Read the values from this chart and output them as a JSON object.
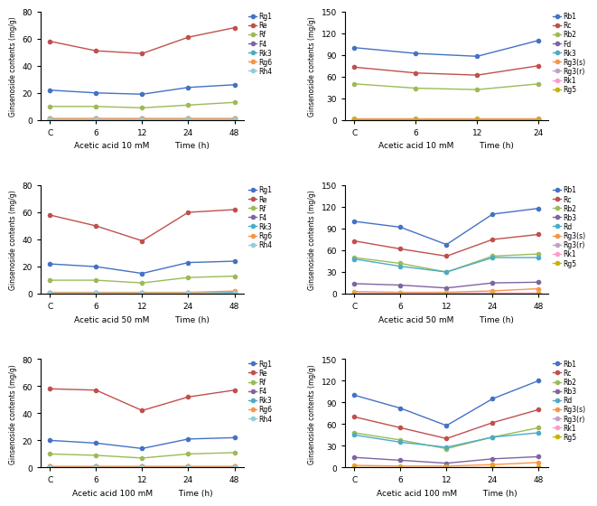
{
  "x_left": [
    "C",
    "6",
    "12",
    "24",
    "48"
  ],
  "left_panels": [
    {
      "title": "Acetic acid 10 mM",
      "ylim": [
        0,
        80
      ],
      "yticks": [
        0,
        20,
        40,
        60,
        80
      ],
      "series": {
        "Rg1": [
          22,
          20,
          19,
          24,
          26
        ],
        "Re": [
          58,
          51,
          49,
          61,
          68
        ],
        "Rf": [
          10,
          10,
          9,
          11,
          13
        ],
        "F4": [
          1,
          1,
          1,
          1,
          1
        ],
        "Rk3": [
          1,
          1,
          1,
          1,
          1
        ],
        "Rg6": [
          1,
          1,
          1,
          1,
          1
        ],
        "Rh4": [
          0.5,
          0.5,
          0.5,
          0.5,
          0.5
        ]
      }
    },
    {
      "title": "Acetic acid 50 mM",
      "ylim": [
        0,
        80
      ],
      "yticks": [
        0,
        20,
        40,
        60,
        80
      ],
      "series": {
        "Rg1": [
          22,
          20,
          15,
          23,
          24
        ],
        "Re": [
          58,
          50,
          39,
          60,
          62
        ],
        "Rf": [
          10,
          10,
          8,
          12,
          13
        ],
        "F4": [
          1,
          1,
          1,
          1,
          1
        ],
        "Rk3": [
          1,
          0.5,
          0.5,
          0.5,
          1
        ],
        "Rg6": [
          1,
          1,
          1,
          1,
          2
        ],
        "Rh4": [
          0.5,
          0.5,
          0.5,
          0.5,
          0.5
        ]
      }
    },
    {
      "title": "Acetic acid 100 mM",
      "ylim": [
        0,
        80
      ],
      "yticks": [
        0,
        20,
        40,
        60,
        80
      ],
      "series": {
        "Rg1": [
          20,
          18,
          14,
          21,
          22
        ],
        "Re": [
          58,
          57,
          42,
          52,
          57
        ],
        "Rf": [
          10,
          9,
          7,
          10,
          11
        ],
        "F4": [
          1,
          1,
          1,
          1,
          1
        ],
        "Rk3": [
          1,
          1,
          1,
          1,
          1
        ],
        "Rg6": [
          1,
          1,
          1,
          1,
          1
        ],
        "Rh4": [
          0.5,
          0.5,
          0.5,
          0.5,
          0.5
        ]
      }
    }
  ],
  "right_10mM": {
    "title": "Acetic acid 10 mM",
    "x": [
      "C",
      "6",
      "12",
      "24"
    ],
    "ylim": [
      0,
      150
    ],
    "yticks": [
      0,
      30,
      60,
      90,
      120,
      150
    ],
    "series": {
      "Rb1": [
        100,
        92,
        88,
        110
      ],
      "Rc": [
        73,
        65,
        62,
        75
      ],
      "Rb2": [
        50,
        44,
        42,
        50
      ],
      "Fd": [
        1,
        1,
        1,
        1
      ],
      "Rk3": [
        1,
        1,
        1,
        1
      ],
      "Rg3(s)": [
        2,
        2,
        2,
        2
      ],
      "Rg3(r)": [
        1,
        1,
        1,
        1
      ],
      "Rk1": [
        1,
        1,
        1,
        1
      ],
      "Rg5": [
        0.5,
        0.5,
        0.5,
        0.5
      ]
    }
  },
  "right_50mM": {
    "title": "Acetic acid 50 mM",
    "x": [
      "C",
      "6",
      "12",
      "24",
      "48"
    ],
    "ylim": [
      0,
      150
    ],
    "yticks": [
      0,
      30,
      60,
      90,
      120,
      150
    ],
    "series": {
      "Rb1": [
        100,
        92,
        68,
        110,
        118
      ],
      "Rc": [
        73,
        62,
        52,
        75,
        82
      ],
      "Rb2": [
        50,
        42,
        30,
        52,
        55
      ],
      "Rb3": [
        14,
        12,
        8,
        15,
        16
      ],
      "Rd": [
        48,
        38,
        30,
        50,
        50
      ],
      "Rg3(s)": [
        3,
        2,
        2,
        4,
        7
      ],
      "Rg3(r)": [
        1,
        1,
        1,
        1,
        1
      ],
      "Rk1": [
        1,
        1,
        1,
        1,
        1
      ],
      "Rg5": [
        0.5,
        0.5,
        0.5,
        0.5,
        0.5
      ]
    }
  },
  "right_100mM": {
    "title": "Acetic acid 100 mM",
    "x": [
      "C",
      "6",
      "12",
      "24",
      "48"
    ],
    "ylim": [
      0,
      150
    ],
    "yticks": [
      0,
      30,
      60,
      90,
      120,
      150
    ],
    "series": {
      "Rb1": [
        100,
        82,
        58,
        95,
        120
      ],
      "Rc": [
        70,
        55,
        40,
        62,
        80
      ],
      "Rb2": [
        48,
        38,
        26,
        42,
        55
      ],
      "Rb3": [
        14,
        10,
        6,
        12,
        15
      ],
      "Rd": [
        45,
        35,
        28,
        42,
        48
      ],
      "Rg3(s)": [
        3,
        2,
        2,
        4,
        7
      ],
      "Rg3(r)": [
        1,
        1,
        1,
        1,
        1
      ],
      "Rk1": [
        1,
        1,
        1,
        1,
        1
      ],
      "Rg5": [
        0.5,
        0.5,
        0.5,
        0.5,
        0.5
      ]
    }
  },
  "left_colors": {
    "Rg1": "#4472C4",
    "Re": "#C0504D",
    "Rf": "#9BBB59",
    "F4": "#8064A2",
    "Rk3": "#4BACC6",
    "Rg6": "#F79646",
    "Rh4": "#92CDDC"
  },
  "right_colors_10mM": {
    "Rb1": "#4472C4",
    "Rc": "#C0504D",
    "Rb2": "#9BBB59",
    "Fd": "#8064A2",
    "Rk3": "#4BACC6",
    "Rg3(s)": "#F79646",
    "Rg3(r)": "#C0A0C8",
    "Rk1": "#FF99CC",
    "Rg5": "#C8B400"
  },
  "right_colors": {
    "Rb1": "#4472C4",
    "Rc": "#C0504D",
    "Rb2": "#9BBB59",
    "Rb3": "#8064A2",
    "Rd": "#4BACC6",
    "Rg3(s)": "#F79646",
    "Rg3(r)": "#C0A0C8",
    "Rk1": "#FF99CC",
    "Rg5": "#C8B400"
  },
  "ylabel": "Ginsenoside contents (mg/g)",
  "time_label": "Time (h)"
}
